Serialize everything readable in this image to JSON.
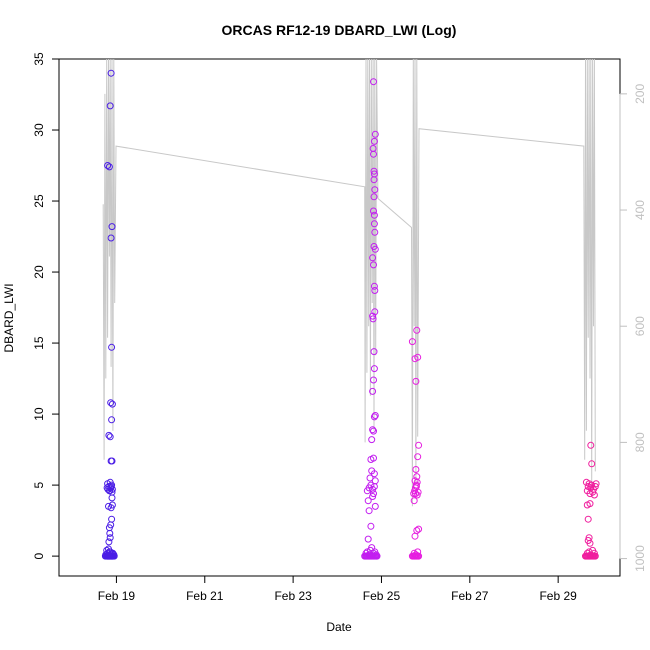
{
  "chart_data": {
    "type": "scatter",
    "title": "ORCAS RF12-19 DBARD_LWI (Log)",
    "xlabel": "Date",
    "ylabel": "DBARD_LWI",
    "x_unit": "days of February 2016",
    "xlim": [
      17.7,
      30.4
    ],
    "ylim": [
      -1.4,
      35.0
    ],
    "grid": false,
    "legend": "none",
    "x_ticks": [
      {
        "value": 19,
        "label": "Feb 19"
      },
      {
        "value": 21,
        "label": "Feb 21"
      },
      {
        "value": 23,
        "label": "Feb 23"
      },
      {
        "value": 25,
        "label": "Feb 25"
      },
      {
        "value": 27,
        "label": "Feb 27"
      },
      {
        "value": 29,
        "label": "Feb 29"
      }
    ],
    "y_ticks": [
      0,
      5,
      10,
      15,
      20,
      25,
      30,
      35
    ],
    "y2_ticks": [
      200,
      400,
      600,
      800,
      1000
    ],
    "y2lim": [
      1030,
      140
    ],
    "colors": {
      "points_start": "#4b1ee6",
      "points_mid": "#c21ef0",
      "points_end": "#f01e9e",
      "pressure_line": "#c8c8c8",
      "axis": "#000000",
      "right_axis": "#c0c0c0"
    },
    "series": [
      {
        "color": "#4b1ee6",
        "x": [
          18.75,
          18.77,
          18.79,
          18.8,
          18.81,
          18.82,
          18.83,
          18.84,
          18.85,
          18.86,
          18.87,
          18.88,
          18.89,
          18.9,
          18.91,
          18.92,
          18.93,
          18.95,
          18.76,
          18.8,
          18.84,
          18.88,
          18.92,
          18.78,
          18.82,
          18.86,
          18.9,
          18.94,
          18.79,
          18.81,
          18.83,
          18.85,
          18.87,
          18.89,
          18.91,
          18.8,
          18.84,
          18.88,
          18.86,
          18.9,
          18.83,
          18.85,
          18.87,
          18.89,
          18.88,
          18.91,
          18.9,
          18.82,
          18.84,
          18.86,
          18.8,
          18.84,
          18.88,
          18.86,
          18.9,
          18.88,
          18.89,
          18.87,
          18.91,
          18.83,
          18.86,
          18.89,
          18.88,
          18.9
        ],
        "y": [
          0,
          0,
          0,
          0,
          0,
          0,
          0,
          0,
          0,
          0,
          0,
          0,
          0,
          0,
          0,
          0,
          0,
          0,
          0.1,
          0.2,
          0.3,
          0.1,
          0.2,
          0.4,
          0.5,
          0.3,
          0.2,
          0.1,
          4.8,
          4.7,
          4.9,
          4.6,
          4.8,
          5.0,
          4.7,
          5.1,
          4.6,
          4.9,
          5.2,
          4.5,
          1.0,
          1.6,
          2.2,
          2.6,
          3.4,
          3.6,
          4.1,
          3.5,
          2.0,
          1.3,
          27.5,
          27.4,
          34.0,
          31.7,
          23.2,
          22.4,
          14.7,
          10.8,
          10.7,
          8.5,
          8.4,
          9.6,
          6.7,
          6.7
        ]
      },
      {
        "color": "#c21ef0",
        "x": [
          24.62,
          24.64,
          24.66,
          24.68,
          24.7,
          24.72,
          24.74,
          24.76,
          24.78,
          24.8,
          24.82,
          24.84,
          24.86,
          24.88,
          24.9,
          24.65,
          24.68,
          24.72,
          24.75,
          24.78,
          24.82,
          24.85,
          24.88,
          24.7,
          24.76,
          24.68,
          24.72,
          24.76,
          24.8,
          24.84,
          24.86,
          24.74,
          24.78,
          24.82,
          24.7,
          24.8,
          24.84,
          24.76,
          24.82,
          24.72,
          24.86,
          24.78,
          24.8,
          24.82,
          24.84,
          24.86,
          24.8,
          24.82,
          24.84,
          24.83,
          24.81,
          24.85,
          24.84,
          24.82,
          24.8,
          24.86,
          24.83,
          24.85,
          24.84,
          24.82,
          24.83,
          24.85,
          24.84,
          24.83,
          24.82,
          24.81,
          24.84,
          24.86,
          24.82,
          24.83,
          24.84,
          24.85,
          24.8
        ],
        "y": [
          0,
          0,
          0,
          0,
          0,
          0,
          0,
          0,
          0,
          0,
          0,
          0,
          0,
          0,
          0,
          0.2,
          0.3,
          0.1,
          0.4,
          0.6,
          0.2,
          0.3,
          0.1,
          1.2,
          2.1,
          4.6,
          4.8,
          5.0,
          4.7,
          4.9,
          5.3,
          5.5,
          6.0,
          4.4,
          3.9,
          4.2,
          5.8,
          6.8,
          6.9,
          3.2,
          3.5,
          8.2,
          8.9,
          8.8,
          9.8,
          9.9,
          11.6,
          12.4,
          13.2,
          14.4,
          16.7,
          17.2,
          19.0,
          20.5,
          21.0,
          21.6,
          21.8,
          22.8,
          23.4,
          24.3,
          25.3,
          25.8,
          26.9,
          27.1,
          28.3,
          28.7,
          29.2,
          29.7,
          33.4,
          26.5,
          24.0,
          18.7,
          16.9
        ]
      },
      {
        "color": "#e61ee0",
        "x": [
          25.7,
          25.72,
          25.74,
          25.76,
          25.78,
          25.8,
          25.82,
          25.84,
          25.74,
          25.78,
          25.82,
          25.76,
          25.8,
          25.84,
          25.73,
          25.75,
          25.77,
          25.79,
          25.81,
          25.83,
          25.76,
          25.8,
          25.78,
          25.82,
          25.74,
          25.84,
          25.7,
          25.76,
          25.8,
          25.78,
          25.82,
          25.79,
          25.81,
          25.77
        ],
        "y": [
          0,
          0,
          0,
          0,
          0,
          0,
          0,
          0,
          0.2,
          0.1,
          0.3,
          1.4,
          1.8,
          1.9,
          4.4,
          4.6,
          4.8,
          5.0,
          4.3,
          4.5,
          5.3,
          5.6,
          6.1,
          7.0,
          3.9,
          7.8,
          15.1,
          13.9,
          15.9,
          12.3,
          14.0,
          4.9,
          5.2,
          4.4
        ]
      },
      {
        "color": "#f01e9e",
        "x": [
          29.62,
          29.64,
          29.66,
          29.68,
          29.7,
          29.72,
          29.74,
          29.76,
          29.78,
          29.8,
          29.82,
          29.84,
          29.66,
          29.7,
          29.74,
          29.78,
          29.82,
          29.64,
          29.66,
          29.68,
          29.7,
          29.72,
          29.74,
          29.76,
          29.78,
          29.8,
          29.82,
          29.84,
          29.86,
          29.66,
          29.68,
          29.7,
          29.72,
          29.74,
          29.76,
          29.68,
          29.72
        ],
        "y": [
          0,
          0,
          0,
          0,
          0,
          0,
          0,
          0,
          0,
          0,
          0,
          0,
          0.2,
          0.3,
          0.1,
          0.4,
          0.2,
          5.2,
          4.6,
          4.9,
          5.1,
          4.4,
          4.8,
          5.0,
          4.5,
          4.7,
          4.3,
          4.9,
          5.1,
          3.6,
          2.6,
          1.3,
          0.9,
          7.8,
          6.5,
          1.1,
          3.7
        ]
      }
    ],
    "pressure_line": {
      "color": "#c8c8c8",
      "axis": "right",
      "x": [
        18.7,
        18.72,
        18.74,
        18.76,
        18.78,
        18.8,
        18.82,
        18.84,
        18.86,
        18.88,
        18.9,
        18.92,
        18.94,
        18.96,
        18.99,
        24.62,
        24.63,
        24.65,
        24.67,
        24.69,
        24.71,
        24.73,
        24.75,
        24.77,
        24.79,
        24.81,
        24.83,
        24.85,
        24.87,
        24.89,
        24.92,
        25.68,
        25.7,
        25.72,
        25.74,
        25.76,
        25.78,
        25.8,
        25.82,
        25.85,
        29.58,
        29.6,
        29.62,
        29.64,
        29.66,
        29.68,
        29.7,
        29.72,
        29.74,
        29.76,
        29.78,
        29.8,
        29.82,
        29.84
      ],
      "y": [
        390,
        830,
        200,
        690,
        140,
        620,
        140,
        480,
        140,
        670,
        140,
        780,
        140,
        560,
        290,
        360,
        800,
        140,
        680,
        140,
        600,
        140,
        720,
        140,
        560,
        140,
        780,
        140,
        650,
        140,
        380,
        430,
        910,
        140,
        600,
        140,
        870,
        140,
        790,
        260,
        290,
        830,
        140,
        780,
        140,
        620,
        140,
        690,
        140,
        880,
        140,
        600,
        140,
        850
      ]
    }
  }
}
